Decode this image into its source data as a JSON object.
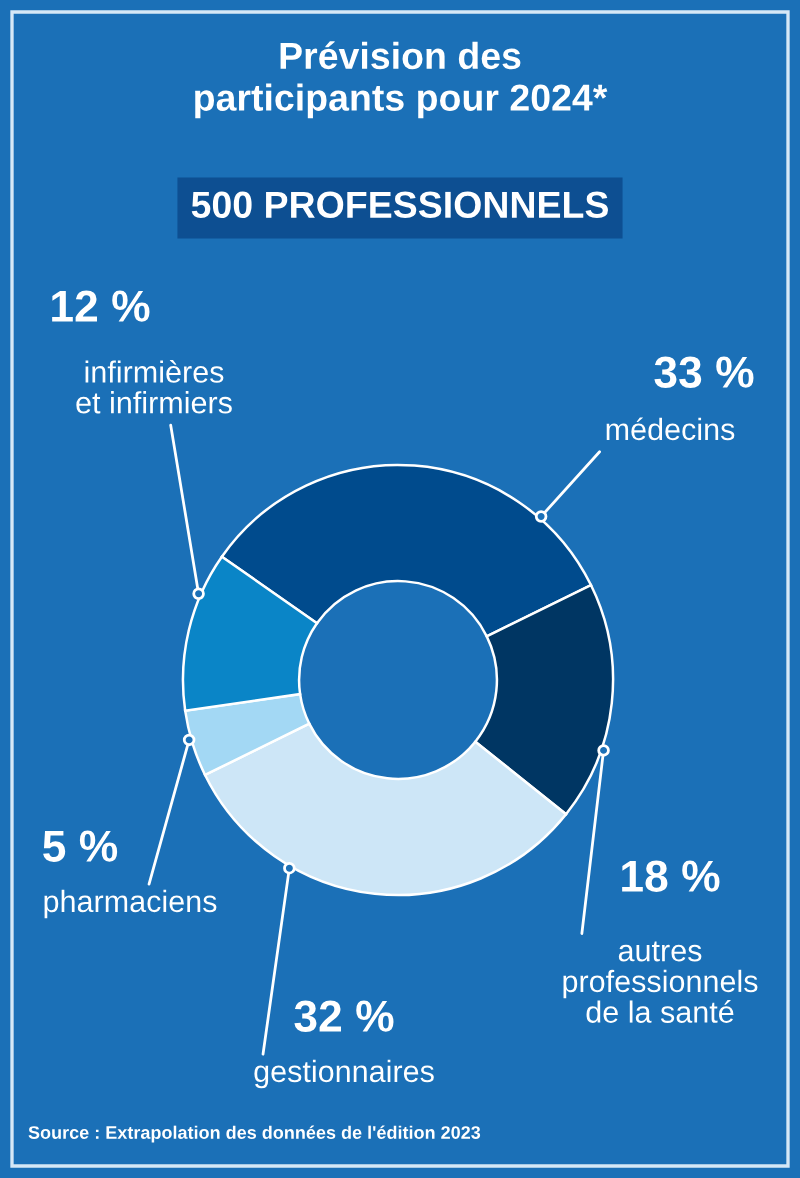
{
  "chart_data": {
    "type": "donut",
    "title": "Prévision des\nparticipants pour 2024*",
    "subtitle": "500 PROFESSIONNELS",
    "categories": [
      "médecins",
      "autres\nprofessionnels\nde la santé",
      "gestionnaires",
      "pharmaciens",
      "infirmières\net infirmiers"
    ],
    "values": [
      33,
      18,
      32,
      5,
      12
    ],
    "colors": [
      "#004b8d",
      "#003663",
      "#cde6f7",
      "#a3d8f4",
      "#0a85c7"
    ],
    "value_labels": [
      "33 %",
      "18 %",
      "32 %",
      "5 %",
      "12 %"
    ],
    "annotations": [
      "Source : Extrapolation des données de l'édition 2023"
    ]
  }
}
